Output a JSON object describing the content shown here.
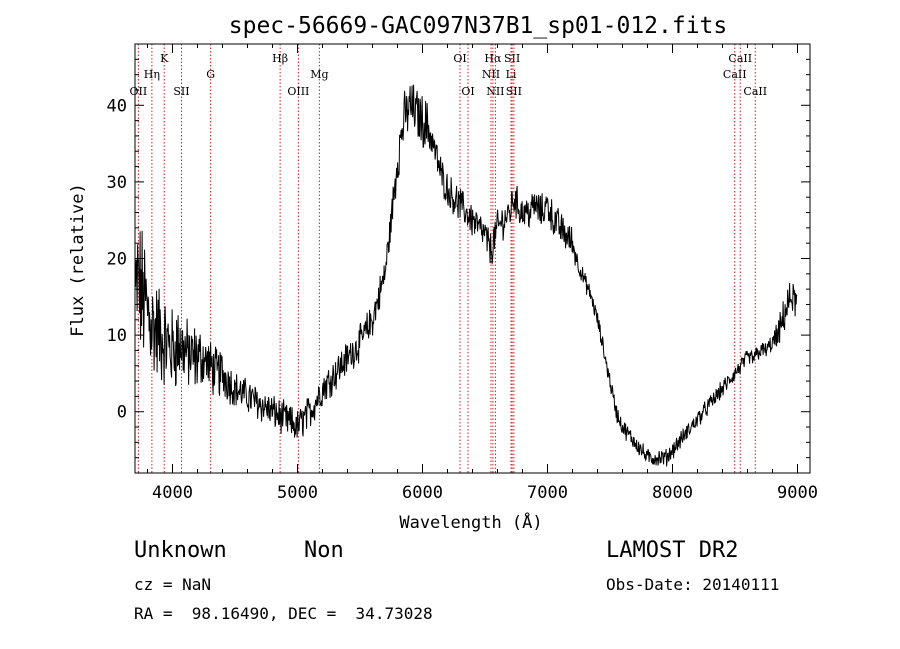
{
  "chart_data": {
    "type": "line",
    "title": "spec-56669-GAC097N37B1_sp01-012.fits",
    "xlabel": "Wavelength (Å)",
    "ylabel": "Flux (relative)",
    "xlim": [
      3700,
      9100
    ],
    "ylim": [
      -8,
      48
    ],
    "xticks": [
      4000,
      5000,
      6000,
      7000,
      8000,
      9000
    ],
    "yticks": [
      0,
      10,
      20,
      30,
      40
    ],
    "grid": false,
    "line_color": "#000000",
    "marker_color": "#cc2222",
    "spectrum_anchors": {
      "wavelength": [
        3700,
        3720,
        3760,
        3800,
        3850,
        3900,
        3950,
        4000,
        4050,
        4100,
        4150,
        4200,
        4250,
        4300,
        4350,
        4400,
        4500,
        4600,
        4700,
        4800,
        4900,
        5000,
        5100,
        5200,
        5300,
        5400,
        5500,
        5600,
        5700,
        5750,
        5800,
        5850,
        5900,
        5950,
        6000,
        6050,
        6100,
        6150,
        6200,
        6250,
        6300,
        6350,
        6400,
        6450,
        6500,
        6550,
        6580,
        6600,
        6650,
        6700,
        6730,
        6760,
        6800,
        6850,
        6900,
        6950,
        7000,
        7050,
        7100,
        7150,
        7200,
        7250,
        7300,
        7350,
        7400,
        7450,
        7500,
        7550,
        7600,
        7650,
        7700,
        7750,
        7800,
        7850,
        7900,
        7950,
        8000,
        8050,
        8100,
        8150,
        8200,
        8250,
        8300,
        8350,
        8400,
        8450,
        8500,
        8550,
        8600,
        8650,
        8700,
        8750,
        8800,
        8850,
        8900,
        8950,
        9000
      ],
      "flux": [
        14,
        17,
        15,
        13,
        11,
        10,
        9,
        8,
        9,
        8,
        7,
        7,
        7,
        6,
        5,
        5,
        3,
        2,
        1,
        0,
        -1,
        -2,
        0,
        3,
        5,
        7,
        9,
        12,
        18,
        25,
        33,
        38,
        40,
        39,
        38,
        37,
        34,
        31,
        29,
        28,
        27,
        26,
        25,
        24,
        23,
        21,
        23,
        24,
        25,
        26,
        28,
        27,
        26,
        26,
        27,
        26,
        27,
        25,
        24,
        23,
        22,
        19,
        17,
        15,
        12,
        8,
        4,
        0,
        -2,
        -3,
        -4,
        -5,
        -6,
        -6,
        -6,
        -6,
        -5,
        -4,
        -3,
        -2,
        -1,
        0,
        1,
        2,
        3,
        4,
        5,
        6,
        7,
        7,
        8,
        8,
        9,
        10,
        13,
        15,
        14
      ],
      "noise": [
        8,
        8,
        8,
        7,
        6,
        6,
        5,
        5,
        5,
        4,
        4,
        4,
        3,
        3,
        3,
        3,
        2,
        2,
        2,
        2,
        2,
        2,
        2,
        2,
        2,
        2,
        2,
        2,
        2,
        2,
        3,
        3,
        3,
        3,
        3,
        3,
        2,
        2,
        2,
        2,
        2,
        2,
        2,
        2,
        2,
        2,
        2,
        2,
        2,
        2,
        2,
        2,
        2,
        2,
        2,
        2,
        2,
        2,
        2,
        2,
        2,
        1,
        1,
        1,
        1,
        1,
        1,
        1,
        1,
        1,
        1,
        1,
        1,
        1,
        1,
        1,
        1,
        1,
        1,
        1,
        1,
        1,
        1,
        1,
        1,
        1,
        1,
        1,
        1,
        1,
        1,
        1,
        1,
        2,
        2,
        2,
        2
      ]
    },
    "line_markers": [
      {
        "label": "OII",
        "wavelength": 3727,
        "row": 3
      },
      {
        "label": "Hη",
        "wavelength": 3835,
        "row": 2
      },
      {
        "label": "K",
        "wavelength": 3934,
        "row": 1
      },
      {
        "label": "SII",
        "wavelength": 4072,
        "row": 3
      },
      {
        "label": "G",
        "wavelength": 4305,
        "row": 2
      },
      {
        "label": "Hβ",
        "wavelength": 4861,
        "row": 1
      },
      {
        "label": "OIII",
        "wavelength": 5007,
        "row": 3
      },
      {
        "label": "Mg",
        "wavelength": 5175,
        "row": 2
      },
      {
        "label": "OI",
        "wavelength": 6300,
        "row": 1
      },
      {
        "label": "OI",
        "wavelength": 6364,
        "row": 3
      },
      {
        "label": "Hα",
        "wavelength": 6563,
        "row": 1
      },
      {
        "label": "NII",
        "wavelength": 6548,
        "row": 2
      },
      {
        "label": "NII",
        "wavelength": 6583,
        "row": 3
      },
      {
        "label": "SII",
        "wavelength": 6717,
        "row": 1
      },
      {
        "label": "Li",
        "wavelength": 6708,
        "row": 2
      },
      {
        "label": "SII",
        "wavelength": 6731,
        "row": 3
      },
      {
        "label": "CaII",
        "wavelength": 8542,
        "row": 1
      },
      {
        "label": "CaII",
        "wavelength": 8498,
        "row": 2
      },
      {
        "label": "CaII",
        "wavelength": 8662,
        "row": 3
      }
    ]
  },
  "info": {
    "class": "Unknown",
    "subclass": "Non",
    "survey": "LAMOST DR2",
    "redshift": "cz = NaN",
    "obs_date": "Obs-Date: 20140111",
    "coords": "RA =  98.16490, DEC =  34.73028"
  }
}
